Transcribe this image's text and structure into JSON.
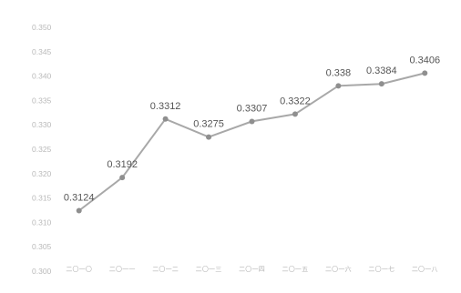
{
  "chart_data": {
    "type": "line",
    "title": "",
    "xlabel": "",
    "ylabel": "",
    "categories": [
      "二〇一〇",
      "二〇一一",
      "二〇一二",
      "二〇一三",
      "二〇一四",
      "二〇一五",
      "二〇一六",
      "二〇一七",
      "二〇一八"
    ],
    "series": [
      {
        "values": [
          0.3124,
          0.3192,
          0.3312,
          0.3275,
          0.3307,
          0.3322,
          0.338,
          0.3384,
          0.3406
        ],
        "labels": [
          "0.3124",
          "0.3192",
          "0.3312",
          "0.3275",
          "0.3307",
          "0.3322",
          "0.338",
          "0.3384",
          "0.3406"
        ]
      }
    ],
    "yticks": [
      "0.350",
      "0.345",
      "0.340",
      "0.335",
      "0.330",
      "0.325",
      "0.320",
      "0.315",
      "0.310",
      "0.305",
      "0.300"
    ],
    "ylim": [
      0.3,
      0.35
    ],
    "grid": false,
    "legend": "none",
    "line_color": "#a8a8a8",
    "marker_color": "#8f8f8f",
    "label_color": "#555555",
    "axis_text_color": "#b9b9b9"
  }
}
